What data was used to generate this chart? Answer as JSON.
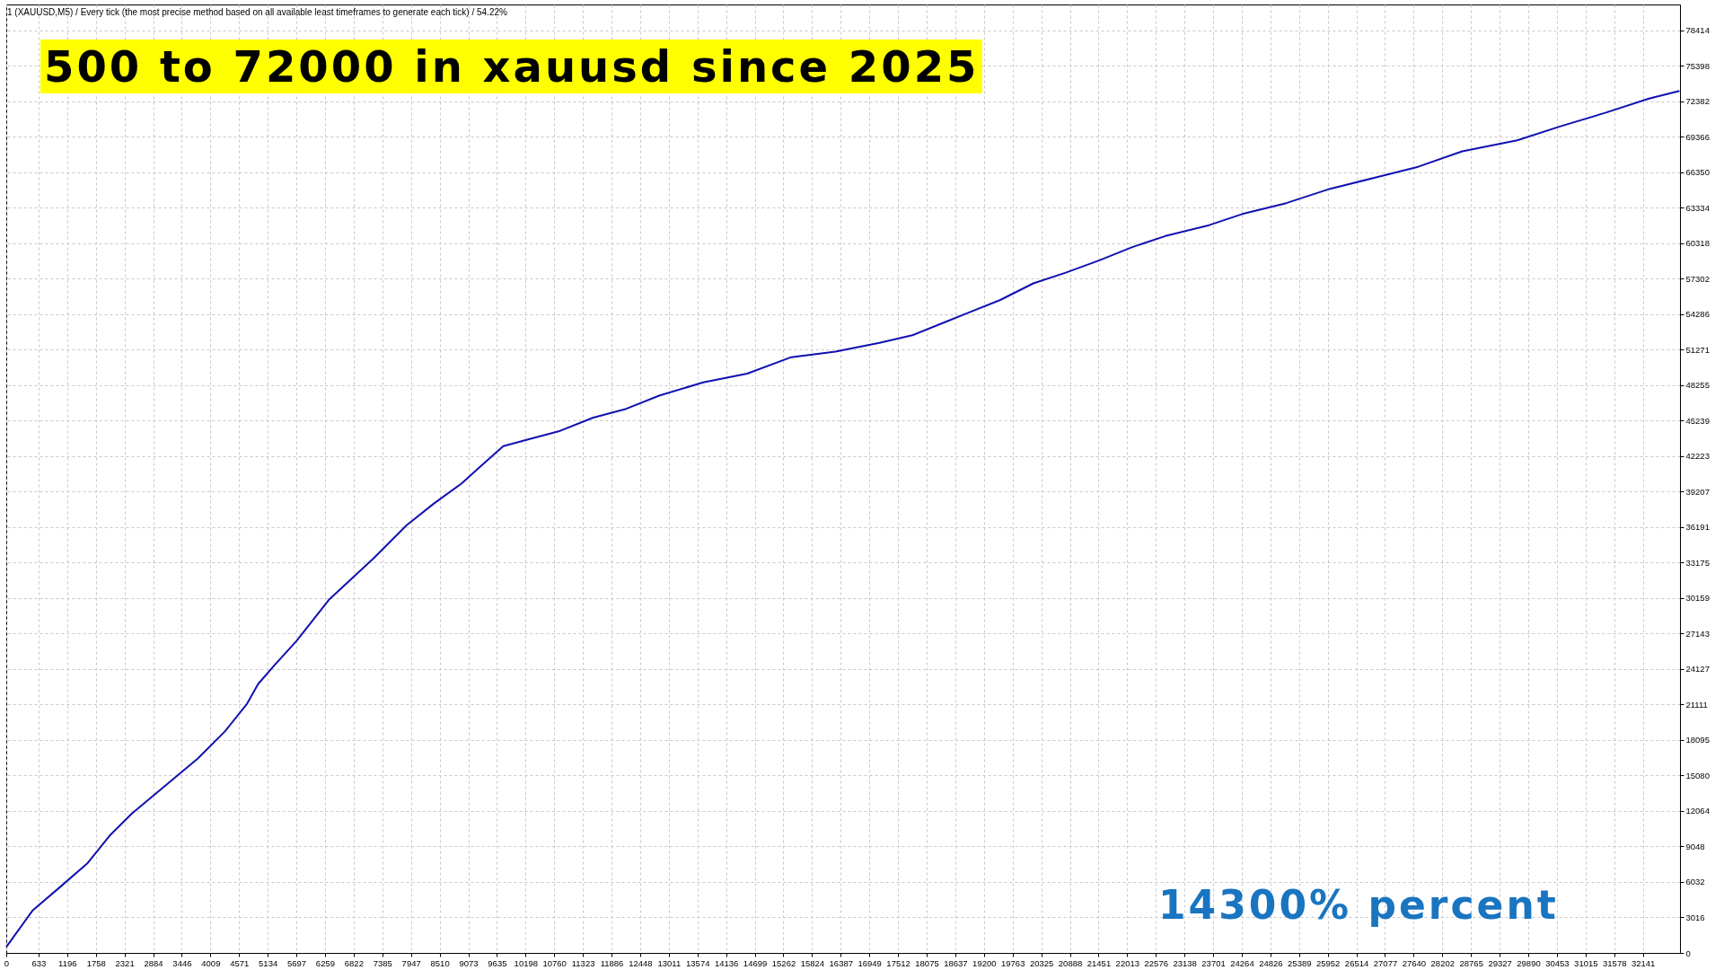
{
  "chart_data": {
    "type": "line",
    "title": "500 to 72000 in xauusd since 2025",
    "annotations": [
      "1 (XAUUSD,M5) / Every tick (the most precise method based on all available least timeframes to generate each tick) / 54.22%",
      "14300% percent"
    ],
    "x": [
      0,
      516,
      1056,
      1598,
      2028,
      2462,
      3107,
      3757,
      4297,
      4728,
      4947,
      5267,
      5700,
      6346,
      7211,
      7858,
      8398,
      8938,
      9368,
      9760,
      10233,
      10879,
      11527,
      12175,
      12822,
      13686,
      14550,
      15418,
      16283,
      17146,
      17794,
      18442,
      18874,
      19521,
      20170,
      20817,
      21466,
      22114,
      22762,
      23624,
      24272,
      25137,
      26001,
      26865,
      27728,
      28592,
      29672,
      30537,
      31401,
      32262,
      32860
    ],
    "series": [
      {
        "color": "#1010b0",
        "values": [
          500,
          3600,
          5600,
          7640,
          9960,
          11830,
          14160,
          16500,
          18840,
          21180,
          22860,
          24450,
          26510,
          30060,
          33520,
          36330,
          38190,
          39880,
          41560,
          43060,
          43620,
          44370,
          45490,
          46240,
          47360,
          48480,
          49230,
          50630,
          51100,
          51840,
          52490,
          53620,
          54370,
          55490,
          56900,
          57830,
          58860,
          59980,
          60920,
          61850,
          62790,
          63720,
          64940,
          65870,
          66810,
          68120,
          69060,
          70270,
          71390,
          72600,
          73260
        ]
      }
    ],
    "xlim": [
      0,
      32870
    ],
    "ylim": [
      0,
      80600
    ],
    "xticks": [
      0,
      633,
      1196,
      1758,
      2321,
      2884,
      3446,
      4009,
      4571,
      5134,
      5697,
      6259,
      6822,
      7385,
      7947,
      8510,
      9073,
      9635,
      10198,
      10760,
      11323,
      11886,
      12448,
      13011,
      13574,
      14136,
      14699,
      15262,
      15824,
      16387,
      16949,
      17512,
      18075,
      18637,
      19200,
      19763,
      20325,
      20888,
      21451,
      22013,
      22576,
      23138,
      23701,
      24264,
      24826,
      25389,
      25952,
      26514,
      27077,
      27640,
      28202,
      28765,
      29327,
      29890,
      30453,
      31015,
      31578,
      32141
    ],
    "yticks": [
      0,
      3016,
      6032,
      9048,
      12064,
      15080,
      18095,
      21111,
      24127,
      27143,
      30159,
      33175,
      36191,
      39207,
      42223,
      45239,
      48255,
      51271,
      54286,
      57302,
      60318,
      63334,
      66350,
      69366,
      72382,
      75398,
      78414
    ],
    "grid": true,
    "marker": "none",
    "line_style": "solid"
  }
}
